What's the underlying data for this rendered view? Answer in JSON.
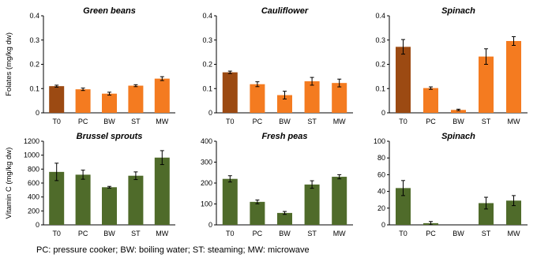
{
  "chart_data": [
    {
      "type": "bar",
      "title": "Green beans",
      "ylabel": "Folates (mg/kg dw)",
      "categories": [
        "T0",
        "PC",
        "BW",
        "ST",
        "MW"
      ],
      "values": [
        0.11,
        0.097,
        0.079,
        0.112,
        0.141
      ],
      "errors": [
        0.004,
        0.005,
        0.006,
        0.004,
        0.008
      ],
      "colors": [
        "#9c4a12",
        "#f47b20",
        "#f47b20",
        "#f47b20",
        "#f47b20"
      ],
      "ylim": [
        0,
        0.4
      ],
      "yticks": [
        "0",
        "0.1",
        "0.2",
        "0.3",
        "0.4"
      ]
    },
    {
      "type": "bar",
      "title": "Cauliflower",
      "ylabel": "",
      "categories": [
        "T0",
        "PC",
        "BW",
        "ST",
        "MW"
      ],
      "values": [
        0.167,
        0.118,
        0.073,
        0.13,
        0.123
      ],
      "errors": [
        0.005,
        0.01,
        0.016,
        0.016,
        0.016
      ],
      "colors": [
        "#9c4a12",
        "#f47b20",
        "#f47b20",
        "#f47b20",
        "#f47b20"
      ],
      "ylim": [
        0,
        0.4
      ],
      "yticks": [
        "0",
        "0.1",
        "0.2",
        "0.3",
        "0.4"
      ]
    },
    {
      "type": "bar",
      "title": "Spinach",
      "ylabel": "",
      "categories": [
        "T0",
        "PC",
        "BW",
        "ST",
        "MW"
      ],
      "values": [
        0.272,
        0.102,
        0.012,
        0.232,
        0.296
      ],
      "errors": [
        0.03,
        0.005,
        0.003,
        0.032,
        0.018
      ],
      "colors": [
        "#9c4a12",
        "#f47b20",
        "#f47b20",
        "#f47b20",
        "#f47b20"
      ],
      "ylim": [
        0,
        0.4
      ],
      "yticks": [
        "0",
        "0.1",
        "0.2",
        "0.3",
        "0.4"
      ]
    },
    {
      "type": "bar",
      "title": "Brussel sprouts",
      "ylabel": "Vitamin C (mg/kg dw)",
      "categories": [
        "T0",
        "PC",
        "BW",
        "ST",
        "MW"
      ],
      "values": [
        760,
        720,
        540,
        705,
        965
      ],
      "errors": [
        125,
        65,
        12,
        55,
        100
      ],
      "colors": [
        "#4f6b2a",
        "#4f6b2a",
        "#4f6b2a",
        "#4f6b2a",
        "#4f6b2a"
      ],
      "ylim": [
        0,
        1200
      ],
      "yticks": [
        "0",
        "200",
        "400",
        "600",
        "800",
        "1000",
        "1200"
      ]
    },
    {
      "type": "bar",
      "title": "Fresh peas",
      "ylabel": "",
      "categories": [
        "T0",
        "PC",
        "BW",
        "ST",
        "MW"
      ],
      "values": [
        220,
        110,
        57,
        193,
        230
      ],
      "errors": [
        15,
        9,
        7,
        18,
        10
      ],
      "colors": [
        "#4f6b2a",
        "#4f6b2a",
        "#4f6b2a",
        "#4f6b2a",
        "#4f6b2a"
      ],
      "ylim": [
        0,
        400
      ],
      "yticks": [
        "0",
        "100",
        "200",
        "300",
        "400"
      ]
    },
    {
      "type": "bar",
      "title": "Spinach",
      "ylabel": "",
      "categories": [
        "T0",
        "PC",
        "BW",
        "ST",
        "MW"
      ],
      "values": [
        44,
        2,
        0,
        26,
        29
      ],
      "errors": [
        9,
        2,
        0,
        7,
        6
      ],
      "colors": [
        "#4f6b2a",
        "#4f6b2a",
        "#4f6b2a",
        "#4f6b2a",
        "#4f6b2a"
      ],
      "ylim": [
        0,
        100
      ],
      "yticks": [
        "0",
        "20",
        "40",
        "60",
        "80",
        "100"
      ]
    }
  ],
  "footnote": "PC: pressure cooker; BW: boiling water; ST: steaming; MW: microwave"
}
